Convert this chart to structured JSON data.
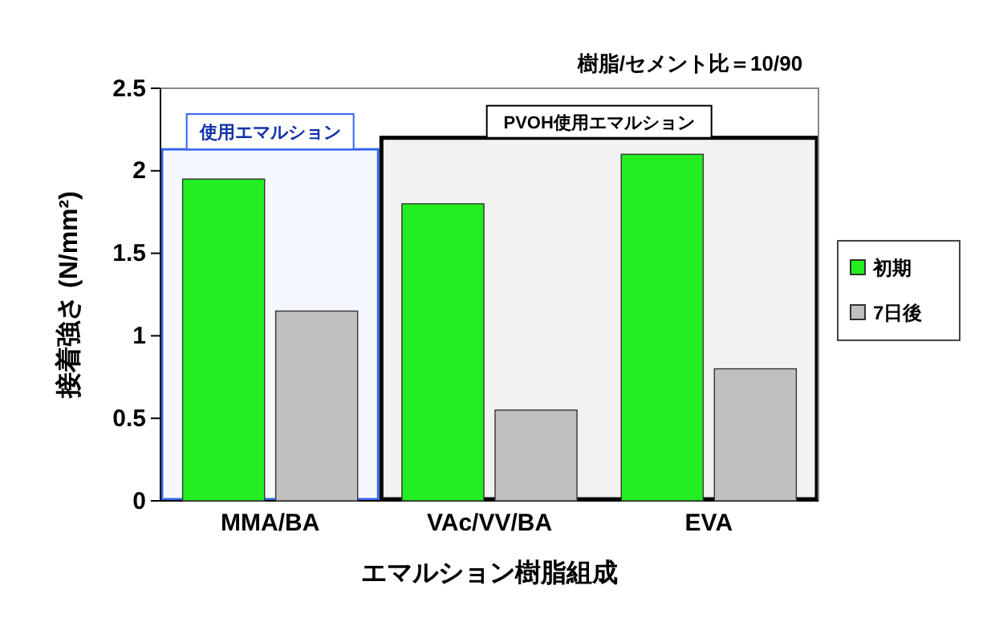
{
  "chart_data": {
    "type": "bar",
    "title": "樹脂/セメント比＝10/90",
    "xlabel": "エマルション樹脂組成",
    "ylabel": "接着強さ (N/mm²)",
    "categories": [
      "MMA/BA",
      "VAc/VV/BA",
      "EVA"
    ],
    "series": [
      {
        "name": "初期",
        "color": "#22ee22",
        "values": [
          1.95,
          1.8,
          2.1
        ]
      },
      {
        "name": "7日後",
        "color": "#c0c0c0",
        "values": [
          1.15,
          0.55,
          0.8
        ]
      }
    ],
    "ylim": [
      0,
      2.5
    ],
    "yticks": [
      0,
      0.5,
      1,
      1.5,
      2,
      2.5
    ],
    "legend": "right",
    "grid": false,
    "bands": [
      {
        "axis": "x",
        "from": "MMA/BA",
        "to": "MMA/BA",
        "label": "使用エマルション",
        "color": "#3366ee"
      },
      {
        "axis": "x",
        "from": "VAc/VV/BA",
        "to": "EVA",
        "label": "PVOH使用エマルション",
        "color": "#000000"
      }
    ]
  }
}
